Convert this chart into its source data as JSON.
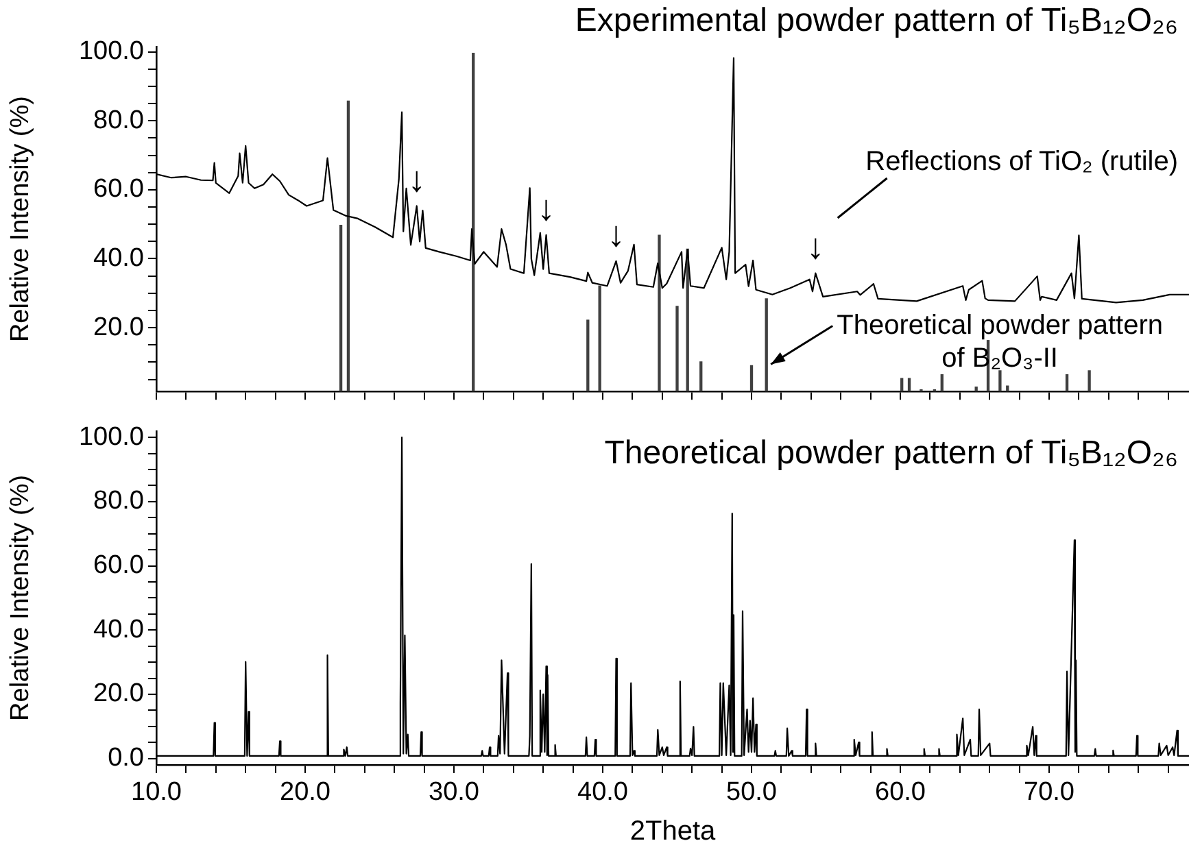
{
  "chart_data": [
    {
      "type": "line",
      "title": "Experimental powder pattern of Ti₅B₁₂O₂₆",
      "ylabel": "Relative Intensity (%)",
      "xlim": [
        10,
        79.4
      ],
      "ylim": [
        1.5,
        101.5
      ],
      "tick_labels": "y",
      "grid": false,
      "legend": false,
      "marker": "none",
      "xticks": [
        {
          "value": 10,
          "label": null
        },
        {
          "value": 12,
          "label": null
        },
        {
          "value": 14,
          "label": null
        },
        {
          "value": 16,
          "label": null
        },
        {
          "value": 18,
          "label": null
        },
        {
          "value": 20,
          "label": null
        },
        {
          "value": 22,
          "label": null
        },
        {
          "value": 24,
          "label": null
        },
        {
          "value": 26,
          "label": null
        },
        {
          "value": 28,
          "label": null
        },
        {
          "value": 30,
          "label": null
        },
        {
          "value": 32,
          "label": null
        },
        {
          "value": 34,
          "label": null
        },
        {
          "value": 36,
          "label": null
        },
        {
          "value": 38,
          "label": null
        },
        {
          "value": 40,
          "label": null
        },
        {
          "value": 42,
          "label": null
        },
        {
          "value": 44,
          "label": null
        },
        {
          "value": 46,
          "label": null
        },
        {
          "value": 48,
          "label": null
        },
        {
          "value": 50,
          "label": null
        },
        {
          "value": 52,
          "label": null
        },
        {
          "value": 54,
          "label": null
        },
        {
          "value": 56,
          "label": null
        },
        {
          "value": 58,
          "label": null
        },
        {
          "value": 60,
          "label": null
        },
        {
          "value": 62,
          "label": null
        },
        {
          "value": 64,
          "label": null
        },
        {
          "value": 66,
          "label": null
        },
        {
          "value": 68,
          "label": null
        },
        {
          "value": 70,
          "label": null
        },
        {
          "value": 72,
          "label": null
        },
        {
          "value": 74,
          "label": null
        },
        {
          "value": 76,
          "label": null
        },
        {
          "value": 78,
          "label": null
        }
      ],
      "yticks": [
        {
          "value": 5,
          "label": null
        },
        {
          "value": 10,
          "label": null
        },
        {
          "value": 15,
          "label": null
        },
        {
          "value": 20,
          "label": "20.0"
        },
        {
          "value": 25,
          "label": null
        },
        {
          "value": 30,
          "label": null
        },
        {
          "value": 35,
          "label": null
        },
        {
          "value": 40,
          "label": "40.0"
        },
        {
          "value": 45,
          "label": null
        },
        {
          "value": 50,
          "label": null
        },
        {
          "value": 55,
          "label": null
        },
        {
          "value": 60,
          "label": "60.0"
        },
        {
          "value": 65,
          "label": null
        },
        {
          "value": 70,
          "label": null
        },
        {
          "value": 75,
          "label": null
        },
        {
          "value": 80,
          "label": "80.0"
        },
        {
          "value": 85,
          "label": null
        },
        {
          "value": 90,
          "label": null
        },
        {
          "value": 95,
          "label": null
        },
        {
          "value": 100,
          "label": "100.0"
        }
      ],
      "series": [
        {
          "color": "#000000",
          "x": [
            10.0,
            11.0,
            12.0,
            13.0,
            13.8,
            13.9,
            14.0,
            14.9,
            15.5,
            15.6,
            15.8,
            16.0,
            16.2,
            16.6,
            17.2,
            17.8,
            18.3,
            18.9,
            19.5,
            20.1,
            21.2,
            21.5,
            21.9,
            22.7,
            23.5,
            24.7,
            25.9,
            26.3,
            26.5,
            26.6,
            26.8,
            27.1,
            27.5,
            27.7,
            27.9,
            28.1,
            29.0,
            30.2,
            31.1,
            31.2,
            31.4,
            32.0,
            32.9,
            33.2,
            33.5,
            33.8,
            34.7,
            35.1,
            35.2,
            35.4,
            35.8,
            36.0,
            36.2,
            36.4,
            37.8,
            38.9,
            39.0,
            39.3,
            40.3,
            40.9,
            41.2,
            41.7,
            42.1,
            42.3,
            43.4,
            43.7,
            44.0,
            44.3,
            45.3,
            45.4,
            45.7,
            45.9,
            46.8,
            48.0,
            48.3,
            48.5,
            48.8,
            48.9,
            49.6,
            49.8,
            50.1,
            50.3,
            51.4,
            52.6,
            53.9,
            54.1,
            54.3,
            54.8,
            57.1,
            57.3,
            58.2,
            58.5,
            61.1,
            64.2,
            64.4,
            64.6,
            65.5,
            65.7,
            65.9,
            67.7,
            69.2,
            69.4,
            69.5,
            70.5,
            71.5,
            71.7,
            72.0,
            72.2,
            74.5,
            76.3,
            78.1,
            79.4
          ],
          "values": [
            64.5,
            63.5,
            63.8,
            62.8,
            62.7,
            67.8,
            62.0,
            59.0,
            64.0,
            70.6,
            62.0,
            72.7,
            62.0,
            60.4,
            61.5,
            64.5,
            62.5,
            58.5,
            57.0,
            55.3,
            56.9,
            69.2,
            54.1,
            52.5,
            51.7,
            49.2,
            46.2,
            63.0,
            82.5,
            47.9,
            60.4,
            44.0,
            55.3,
            45.0,
            54.0,
            43.1,
            42.0,
            40.7,
            39.5,
            48.6,
            38.5,
            42.0,
            37.6,
            48.6,
            44.1,
            37.0,
            35.8,
            60.5,
            40.0,
            35.2,
            47.5,
            37.0,
            46.9,
            35.8,
            34.7,
            33.5,
            36.0,
            33.0,
            32.1,
            39.3,
            33.0,
            36.5,
            44.1,
            32.5,
            31.8,
            38.7,
            31.5,
            32.8,
            42.0,
            31.5,
            42.6,
            32.1,
            31.5,
            43.2,
            34.0,
            42.0,
            98.2,
            35.8,
            38.3,
            32.0,
            39.5,
            31.0,
            29.6,
            31.5,
            34.0,
            30.5,
            35.8,
            29.0,
            30.5,
            29.5,
            32.7,
            28.4,
            27.7,
            32.1,
            28.0,
            31.0,
            33.6,
            28.5,
            28.0,
            27.7,
            34.9,
            28.0,
            29.0,
            28.0,
            35.8,
            28.5,
            46.8,
            28.4,
            27.3,
            28.0,
            29.6,
            29.6
          ]
        },
        {
          "type": "bar",
          "color": "#404040",
          "x": [
            22.4,
            22.9,
            31.3,
            39.0,
            39.8,
            43.8,
            45.0,
            45.7,
            46.6,
            50.0,
            51.0,
            60.1,
            60.6,
            61.4,
            62.3,
            62.8,
            65.1,
            65.9,
            66.7,
            67.2,
            71.2,
            72.7
          ],
          "values": [
            49.7,
            85.7,
            99.6,
            22.2,
            32.1,
            46.8,
            26.2,
            42.8,
            10.1,
            9.0,
            28.4,
            5.3,
            5.3,
            2.0,
            2.0,
            6.4,
            2.8,
            16.3,
            7.5,
            3.1,
            6.4,
            7.5
          ]
        }
      ],
      "annotations": [
        {
          "text": "↓",
          "x": 27.5,
          "y": 55.3
        },
        {
          "text": "↓",
          "x": 36.2,
          "y": 46.9
        },
        {
          "text": "↓",
          "x": 40.9,
          "y": 39.3
        },
        {
          "text": "↓",
          "x": 54.3,
          "y": 35.8
        },
        "Reflections of TiO₂ (rutile)",
        {
          "text": "Theoretical powder pattern of B₂O₃-II",
          "x": 51.3,
          "y": 9.4
        }
      ]
    },
    {
      "type": "line",
      "title": "Theoretical powder pattern of Ti₅B₁₂O₂₆",
      "xlabel": "2Theta",
      "ylabel": "Relative Intensity (%)",
      "xlim": [
        10,
        79.4
      ],
      "ylim": [
        -2,
        102
      ],
      "grid": false,
      "legend": false,
      "marker": "none",
      "xticks": [
        {
          "value": 10,
          "label": "10.0"
        },
        {
          "value": 12,
          "label": null
        },
        {
          "value": 14,
          "label": null
        },
        {
          "value": 16,
          "label": null
        },
        {
          "value": 18,
          "label": null
        },
        {
          "value": 20,
          "label": "20.0"
        },
        {
          "value": 22,
          "label": null
        },
        {
          "value": 24,
          "label": null
        },
        {
          "value": 26,
          "label": null
        },
        {
          "value": 28,
          "label": null
        },
        {
          "value": 30,
          "label": "30.0"
        },
        {
          "value": 32,
          "label": null
        },
        {
          "value": 34,
          "label": null
        },
        {
          "value": 36,
          "label": null
        },
        {
          "value": 38,
          "label": null
        },
        {
          "value": 40,
          "label": "40.0"
        },
        {
          "value": 42,
          "label": null
        },
        {
          "value": 44,
          "label": null
        },
        {
          "value": 46,
          "label": null
        },
        {
          "value": 48,
          "label": null
        },
        {
          "value": 50,
          "label": "50.0"
        },
        {
          "value": 52,
          "label": null
        },
        {
          "value": 54,
          "label": null
        },
        {
          "value": 56,
          "label": null
        },
        {
          "value": 58,
          "label": null
        },
        {
          "value": 60,
          "label": "60.0"
        },
        {
          "value": 62,
          "label": null
        },
        {
          "value": 64,
          "label": null
        },
        {
          "value": 66,
          "label": null
        },
        {
          "value": 68,
          "label": null
        },
        {
          "value": 70,
          "label": "70.0"
        },
        {
          "value": 72,
          "label": null
        },
        {
          "value": 74,
          "label": null
        },
        {
          "value": 76,
          "label": null
        },
        {
          "value": 78,
          "label": null
        }
      ],
      "yticks": [
        {
          "value": 0,
          "label": "0.0"
        },
        {
          "value": 5,
          "label": null
        },
        {
          "value": 10,
          "label": null
        },
        {
          "value": 15,
          "label": null
        },
        {
          "value": 20,
          "label": "20.0"
        },
        {
          "value": 25,
          "label": null
        },
        {
          "value": 30,
          "label": null
        },
        {
          "value": 35,
          "label": null
        },
        {
          "value": 40,
          "label": "40.0"
        },
        {
          "value": 45,
          "label": null
        },
        {
          "value": 50,
          "label": null
        },
        {
          "value": 55,
          "label": null
        },
        {
          "value": 60,
          "label": "60.0"
        },
        {
          "value": 65,
          "label": null
        },
        {
          "value": 70,
          "label": null
        },
        {
          "value": 75,
          "label": null
        },
        {
          "value": 80,
          "label": "80.0"
        },
        {
          "value": 85,
          "label": null
        },
        {
          "value": 90,
          "label": null
        },
        {
          "value": 95,
          "label": null
        },
        {
          "value": 100,
          "label": "100.0"
        }
      ],
      "series": [
        {
          "color": "#000000",
          "x": [
            10.0,
            13.84,
            13.9,
            13.96,
            15.94,
            16.0,
            16.1,
            16.2,
            16.26,
            18.24,
            18.3,
            18.36,
            21.44,
            21.5,
            21.56,
            22.54,
            22.6,
            22.7,
            22.8,
            22.86,
            26.34,
            26.4,
            26.5,
            26.6,
            26.7,
            26.8,
            26.9,
            26.96,
            27.74,
            27.8,
            27.86,
            31.84,
            31.9,
            31.96,
            32.34,
            32.4,
            32.46,
            32.94,
            33.0,
            33.1,
            33.2,
            33.4,
            33.6,
            33.66,
            35.04,
            35.1,
            35.2,
            35.26,
            35.74,
            35.8,
            35.9,
            36.0,
            36.1,
            36.2,
            36.26,
            36.3,
            36.36,
            36.74,
            36.8,
            36.86,
            38.84,
            38.9,
            38.96,
            39.44,
            39.5,
            39.56,
            40.84,
            40.9,
            40.96,
            41.84,
            41.9,
            42.0,
            42.1,
            42.16,
            43.64,
            43.7,
            43.8,
            44.0,
            44.1,
            44.3,
            44.36,
            45.14,
            45.2,
            45.26,
            45.84,
            45.9,
            46.0,
            46.1,
            46.16,
            47.84,
            47.9,
            48.0,
            48.1,
            48.3,
            48.5,
            48.6,
            48.7,
            48.75,
            48.8,
            48.86,
            49.34,
            49.4,
            49.5,
            49.7,
            49.8,
            49.9,
            50.0,
            50.1,
            50.2,
            50.3,
            50.36,
            51.54,
            51.6,
            51.66,
            52.34,
            52.4,
            52.5,
            52.7,
            52.76,
            53.64,
            53.7,
            53.76,
            54.24,
            54.3,
            54.36,
            56.84,
            56.9,
            57.0,
            57.2,
            57.26,
            58.04,
            58.1,
            58.16,
            59.04,
            59.1,
            59.16,
            61.54,
            61.6,
            61.66,
            62.54,
            62.6,
            62.66,
            63.74,
            63.8,
            63.9,
            64.2,
            64.3,
            64.7,
            64.76,
            65.24,
            65.3,
            65.4,
            66.0,
            66.06,
            68.44,
            68.5,
            68.6,
            68.9,
            69.0,
            69.1,
            69.16,
            71.14,
            71.2,
            71.3,
            71.7,
            71.75,
            71.8,
            71.86,
            73.04,
            73.1,
            73.16,
            74.24,
            74.3,
            74.36,
            75.84,
            75.9,
            75.96,
            77.34,
            77.4,
            77.5,
            77.9,
            78.0,
            78.3,
            78.4,
            78.6,
            78.66,
            79.4
          ],
          "values": [
            0.8,
            0.8,
            11.1,
            0.8,
            0.8,
            30.1,
            0.8,
            14.6,
            0.8,
            0.8,
            5.4,
            0.8,
            0.8,
            32.2,
            0.8,
            0.8,
            2.8,
            0.8,
            3.5,
            0.8,
            0.8,
            17.2,
            100,
            1.5,
            38.4,
            1.5,
            7.5,
            0.8,
            0.8,
            8.2,
            0.8,
            0.8,
            2.4,
            0.8,
            0.8,
            3.5,
            0.8,
            0.8,
            7.1,
            1.5,
            30.6,
            1.5,
            26.6,
            0.8,
            0.8,
            7.0,
            60.6,
            0.8,
            0.8,
            21.2,
            2,
            20.0,
            2,
            28.7,
            1,
            26,
            0.8,
            0.8,
            4.2,
            0.8,
            0.8,
            6.6,
            0.8,
            0.8,
            5.9,
            0.8,
            0.8,
            31.1,
            0.8,
            0.8,
            23.5,
            1,
            2.4,
            0.8,
            0.8,
            8.9,
            1,
            3.5,
            1,
            3.5,
            0.8,
            0.8,
            24.0,
            0.8,
            0.8,
            3.1,
            1,
            9.9,
            0.8,
            0.8,
            23.5,
            1,
            23.5,
            1,
            22.8,
            1,
            76.3,
            2,
            44.7,
            0.8,
            0.8,
            45.9,
            1,
            15.3,
            2,
            11.8,
            2,
            18.8,
            2,
            10.6,
            0.8,
            0.8,
            2.4,
            0.8,
            0.8,
            9.4,
            0.8,
            2.4,
            0.8,
            0.8,
            15.3,
            0.8,
            0.8,
            4.7,
            0.8,
            0.8,
            5.9,
            1,
            5.0,
            0.8,
            0.8,
            8.2,
            0.8,
            0.8,
            3.0,
            0.8,
            0.8,
            3.0,
            0.8,
            0.8,
            3.0,
            0.8,
            0.8,
            7.5,
            1,
            12.5,
            1,
            5.9,
            0.8,
            0.8,
            15.3,
            1,
            4.7,
            0.8,
            0.8,
            4.0,
            1,
            9.9,
            1,
            7.1,
            0.8,
            0.8,
            27.1,
            1,
            68,
            2,
            30.6,
            0.8,
            0.8,
            3.0,
            0.8,
            0.8,
            2.5,
            0.8,
            0.8,
            7.1,
            0.8,
            0.8,
            4.7,
            1,
            4.0,
            1,
            3.5,
            1,
            8.7,
            0.8,
            0.8
          ]
        }
      ]
    }
  ]
}
